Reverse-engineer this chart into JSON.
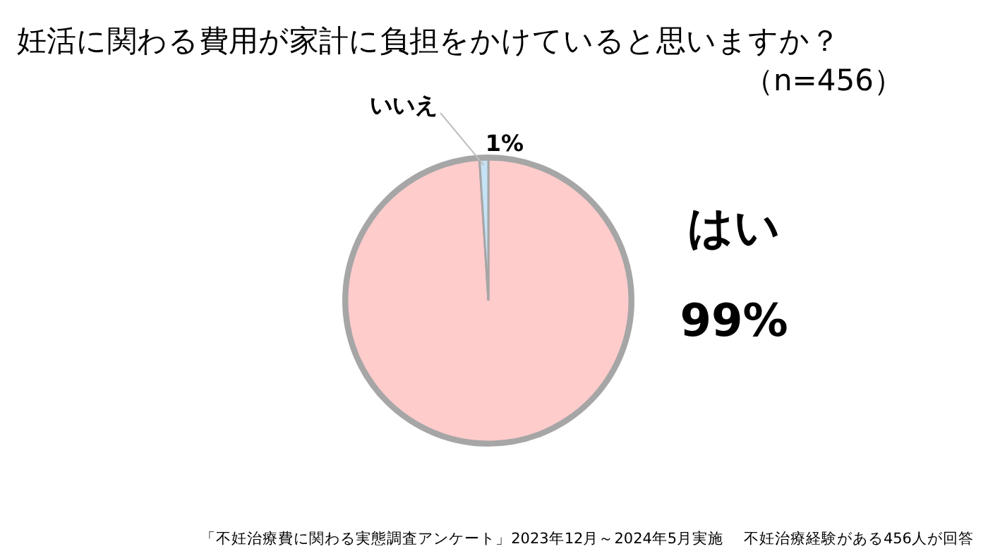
{
  "chart_data": {
    "type": "pie",
    "title": "妊活に関わる費用が家計に負担をかけていると思いますか？",
    "subtitle": "（n=456）",
    "categories": [
      "はい",
      "いいえ"
    ],
    "values": [
      99,
      1
    ],
    "colors": [
      "#ffcccc",
      "#c5e3f6"
    ],
    "value_labels": [
      "99%",
      "1%"
    ],
    "annotations": [
      "「不妊治療費に関わる実態調査アンケート」2023年12月～2024年5月実施　 不妊治療経験がある456人が回答"
    ]
  }
}
